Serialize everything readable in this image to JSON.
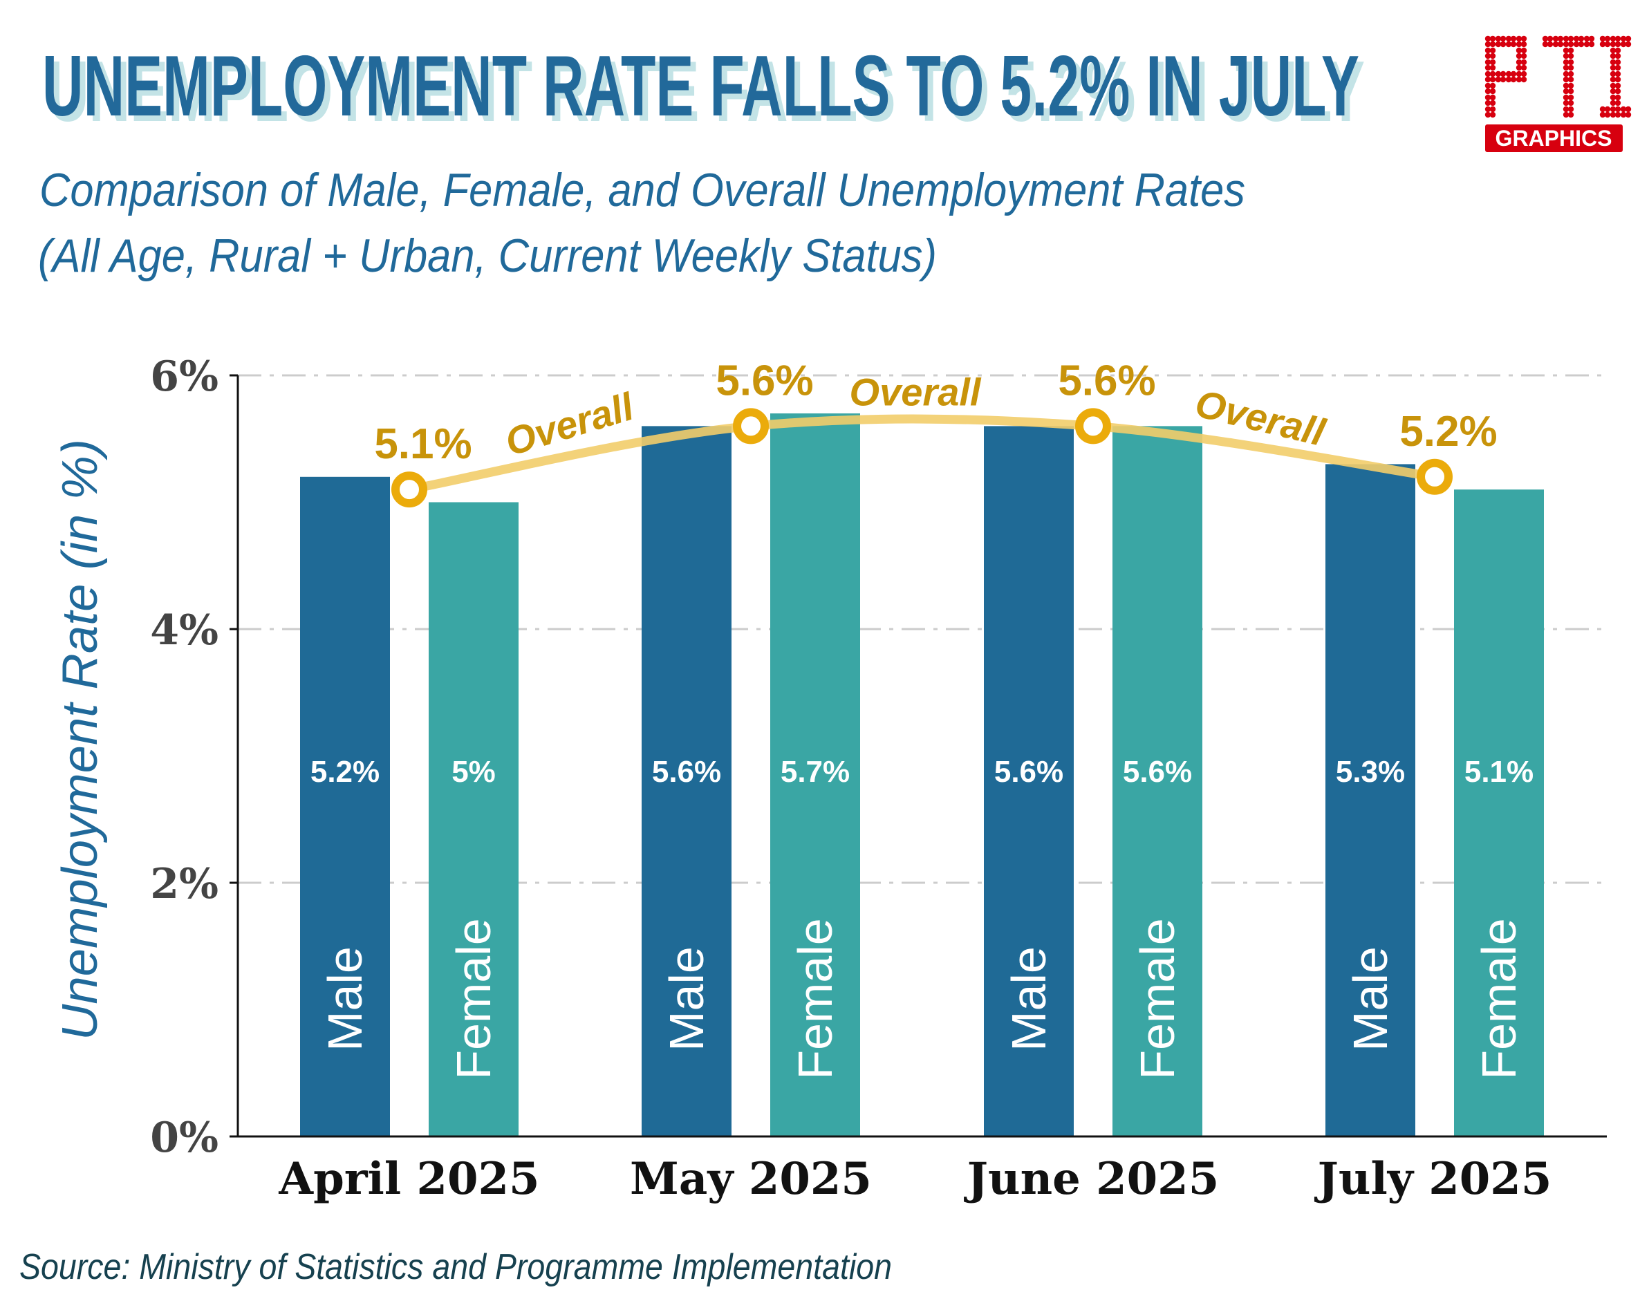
{
  "header": {
    "title": "UNEMPLOYMENT RATE FALLS TO 5.2% IN JULY",
    "subtitle_line1": "Comparison of Male, Female, and Overall Unemployment Rates",
    "subtitle_line2": "(All Age, Rural + Urban, Current Weekly Status)"
  },
  "logo": {
    "text": "PTI",
    "badge": "GRAPHICS",
    "color": "#d7000f"
  },
  "footer": {
    "source": "Source: Ministry of Statistics and Programme Implementation"
  },
  "colors": {
    "title": "#20699a",
    "title_shadow": "#c3e3e6",
    "male": "#1f6a96",
    "female": "#3aa6a4",
    "overall_label": "#c8930a",
    "overall_line": "#f2cd6a",
    "overall_marker": "#ebab0b",
    "axis_text": "#444444"
  },
  "chart_data": {
    "type": "bar",
    "ylabel": "Unemployment Rate (in %)",
    "ylim": [
      0,
      6
    ],
    "yticks": [
      0,
      2,
      4,
      6
    ],
    "ytick_labels": [
      "0%",
      "2%",
      "4%",
      "6%"
    ],
    "grid": true,
    "categories": [
      "April 2025",
      "May 2025",
      "June 2025",
      "July 2025"
    ],
    "series": [
      {
        "name": "Male",
        "values": [
          5.2,
          5.6,
          5.6,
          5.3
        ],
        "labels": [
          "5.2%",
          "5.6%",
          "5.6%",
          "5.3%"
        ]
      },
      {
        "name": "Female",
        "values": [
          5.0,
          5.7,
          5.6,
          5.1
        ],
        "labels": [
          "5%",
          "5.7%",
          "5.6%",
          "5.1%"
        ]
      }
    ],
    "overall": {
      "name": "Overall",
      "type": "line",
      "values": [
        5.1,
        5.6,
        5.6,
        5.2
      ],
      "labels": [
        "5.1%",
        "5.6%",
        "5.6%",
        "5.2%"
      ]
    }
  }
}
